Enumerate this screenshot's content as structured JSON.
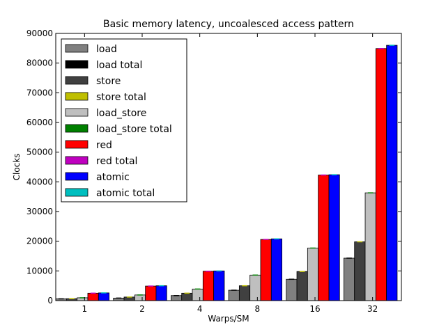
{
  "chart_data": {
    "type": "bar",
    "title": "Basic memory latency, uncoalesced access pattern",
    "xlabel": "Warps/SM",
    "ylabel": "Clocks",
    "categories": [
      "1",
      "2",
      "4",
      "8",
      "16",
      "32"
    ],
    "ylim": [
      0,
      90000
    ],
    "yticks": [
      "0",
      "10000",
      "20000",
      "30000",
      "40000",
      "50000",
      "60000",
      "70000",
      "80000",
      "90000"
    ],
    "legend_position": "top-left",
    "grid": false,
    "series": [
      {
        "name": "load",
        "color": "#808080",
        "values": [
          600,
          850,
          1700,
          3500,
          7200,
          14300
        ]
      },
      {
        "name": "load total",
        "color": "#000000",
        "values": [
          600,
          850,
          1700,
          3500,
          7200,
          14300
        ]
      },
      {
        "name": "store",
        "color": "#404040",
        "values": [
          650,
          1200,
          2500,
          5000,
          9800,
          19800
        ]
      },
      {
        "name": "store total",
        "color": "#bfbf00",
        "values": [
          650,
          1200,
          2500,
          5000,
          9800,
          19800
        ]
      },
      {
        "name": "load_store",
        "color": "#bfbfbf",
        "values": [
          950,
          1900,
          3900,
          8600,
          17700,
          36300
        ]
      },
      {
        "name": "load_store total",
        "color": "#008000",
        "values": [
          950,
          1900,
          3900,
          8600,
          17700,
          36300
        ]
      },
      {
        "name": "red",
        "color": "#ff0000",
        "values": [
          2500,
          4900,
          9900,
          20600,
          42300,
          84900
        ]
      },
      {
        "name": "red total",
        "color": "#bf00bf",
        "values": [
          2500,
          4900,
          9900,
          20600,
          42300,
          84900
        ]
      },
      {
        "name": "atomic",
        "color": "#0000ff",
        "values": [
          2600,
          5000,
          10000,
          20800,
          42400,
          86000
        ]
      },
      {
        "name": "atomic total",
        "color": "#00bfbf",
        "values": [
          2600,
          5000,
          10000,
          20800,
          42400,
          86000
        ]
      }
    ]
  }
}
